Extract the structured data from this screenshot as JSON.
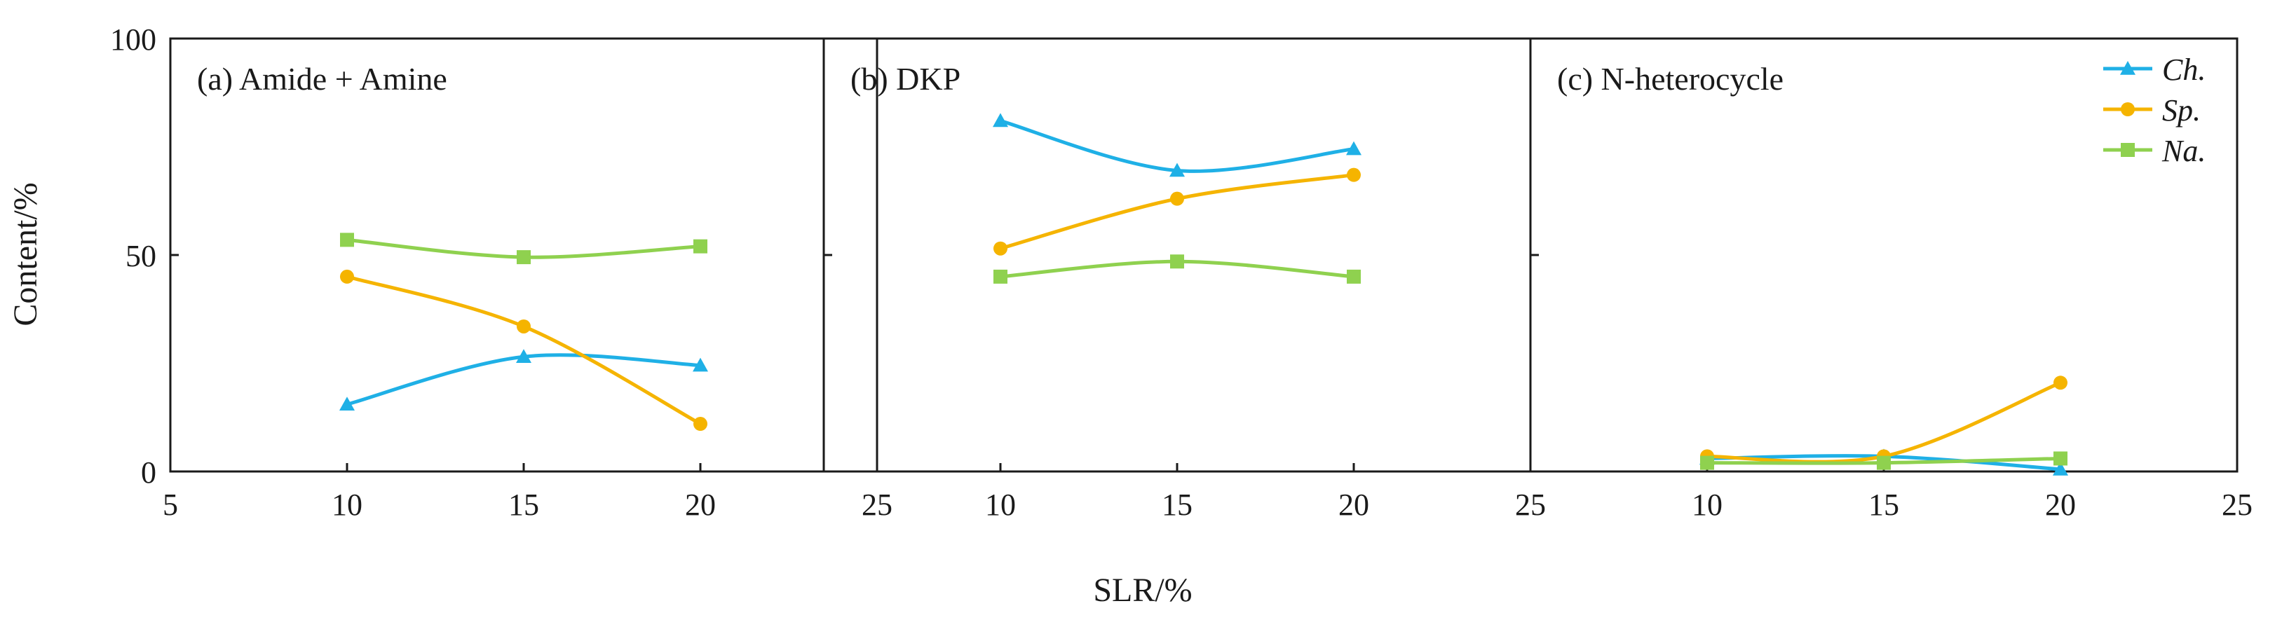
{
  "chart_data": {
    "type": "line",
    "ylabel": "Content/%",
    "xlabel": "SLR/%",
    "ylim": [
      0,
      100
    ],
    "yticks": [
      0,
      50,
      100
    ],
    "xlim": [
      5,
      25
    ],
    "x_tick_labels": [
      "5",
      "10",
      "15",
      "20",
      "25",
      "10",
      "15",
      "20",
      "25",
      "10",
      "15",
      "20",
      "25"
    ],
    "colors": {
      "Ch.": "#1fb0e6",
      "Sp.": "#f5b400",
      "Na.": "#8fd14f"
    },
    "legend": [
      {
        "name": "Ch.",
        "marker": "triangle"
      },
      {
        "name": "Sp.",
        "marker": "circle"
      },
      {
        "name": "Na.",
        "marker": "square"
      }
    ],
    "panels": [
      {
        "title": "(a) Amide + Amine",
        "x": [
          10,
          15,
          20
        ],
        "series": [
          {
            "name": "Ch.",
            "values": [
              15.5,
              26.5,
              24.5
            ]
          },
          {
            "name": "Sp.",
            "values": [
              45,
              33.5,
              11
            ]
          },
          {
            "name": "Na.",
            "values": [
              53.5,
              49.5,
              52
            ]
          }
        ]
      },
      {
        "title": "(b) DKP",
        "x": [
          10,
          15,
          20
        ],
        "series": [
          {
            "name": "Ch.",
            "values": [
              81,
              69.5,
              74.5
            ]
          },
          {
            "name": "Sp.",
            "values": [
              51.5,
              63,
              68.5
            ]
          },
          {
            "name": "Na.",
            "values": [
              45,
              48.5,
              45
            ]
          }
        ]
      },
      {
        "title": "(c) N-heterocycle",
        "x": [
          10,
          15,
          20
        ],
        "series": [
          {
            "name": "Ch.",
            "values": [
              3,
              3.5,
              0.5
            ]
          },
          {
            "name": "Sp.",
            "values": [
              3.5,
              3.5,
              20.5
            ]
          },
          {
            "name": "Na.",
            "values": [
              2,
              2,
              3
            ]
          }
        ]
      }
    ]
  }
}
